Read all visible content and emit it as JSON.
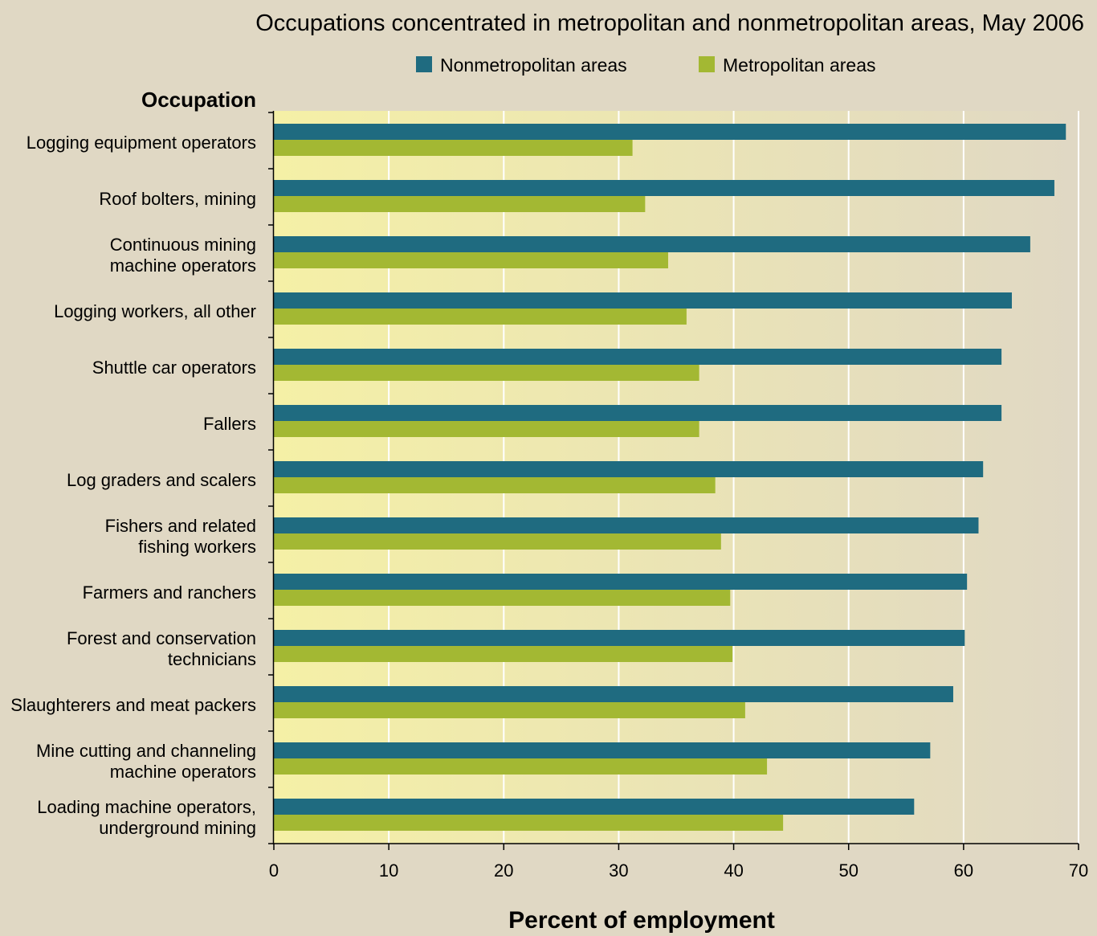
{
  "chart_data": {
    "type": "bar",
    "orientation": "horizontal",
    "title": "Occupations concentrated in metropolitan and nonmetropolitan areas, May 2006",
    "category_axis_title": "Occupation",
    "xlabel": "Percent of employment",
    "xlim": [
      0,
      70
    ],
    "xticks": [
      0,
      10,
      20,
      30,
      40,
      50,
      60,
      70
    ],
    "grid": true,
    "legend_position": "top",
    "categories": [
      [
        "Logging equipment operators"
      ],
      [
        "Roof bolters, mining"
      ],
      [
        "Continuous mining",
        "machine operators"
      ],
      [
        "Logging workers, all other"
      ],
      [
        "Shuttle car operators"
      ],
      [
        "Fallers"
      ],
      [
        "Log graders and scalers"
      ],
      [
        "Fishers and related",
        "fishing workers"
      ],
      [
        "Farmers and ranchers"
      ],
      [
        "Forest and conservation",
        "technicians"
      ],
      [
        "Slaughterers and meat packers"
      ],
      [
        "Mine cutting and channeling",
        "machine operators"
      ],
      [
        "Loading machine operators,",
        "underground mining"
      ]
    ],
    "series": [
      {
        "name": "Nonmetropolitan areas",
        "color": "#1f6b80",
        "values": [
          68.9,
          67.9,
          65.8,
          64.2,
          63.3,
          63.3,
          61.7,
          61.3,
          60.3,
          60.1,
          59.1,
          57.1,
          55.7
        ]
      },
      {
        "name": "Metropolitan areas",
        "color": "#a3b833",
        "values": [
          31.2,
          32.3,
          34.3,
          35.9,
          37.0,
          37.0,
          38.4,
          38.9,
          39.7,
          39.9,
          41.0,
          42.9,
          44.3
        ]
      }
    ]
  }
}
